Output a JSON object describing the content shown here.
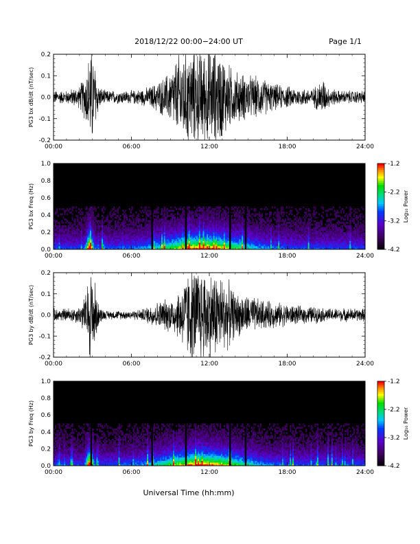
{
  "header": {
    "title": "2018/12/22  00:00−24:00 UT",
    "page": "Page 1/1"
  },
  "footer": {
    "xlabel": "Universal Time (hh:mm)"
  },
  "chart_data": [
    {
      "type": "line",
      "ylabel": "PG3 bx dB/dt (nT/sec)",
      "xlim": [
        0,
        24
      ],
      "ylim": [
        -0.2,
        0.2
      ],
      "x_ticks": [
        "00:00",
        "06:00",
        "12:00",
        "18:00",
        "24:00"
      ],
      "y_ticks": [
        "-0.2",
        "-0.1",
        "0.0",
        "0.1",
        "0.2"
      ],
      "y_tick_values": [
        -0.2,
        -0.1,
        0.0,
        0.1,
        0.2
      ],
      "series": [
        {
          "x": [
            0,
            1,
            2,
            2.5,
            2.8,
            3,
            3.5,
            4,
            5,
            6,
            7,
            7.5,
            8,
            8.5,
            9,
            9.5,
            10,
            10.5,
            11,
            11.5,
            12,
            12.5,
            13,
            13.5,
            14,
            15,
            16,
            17,
            18,
            19,
            20,
            20.8,
            21,
            22,
            23,
            24
          ],
          "envelope": [
            0.03,
            0.03,
            0.05,
            0.12,
            0.22,
            0.22,
            0.05,
            0.03,
            0.03,
            0.03,
            0.04,
            0.05,
            0.07,
            0.09,
            0.12,
            0.18,
            0.22,
            0.22,
            0.22,
            0.22,
            0.22,
            0.22,
            0.2,
            0.15,
            0.12,
            0.1,
            0.09,
            0.06,
            0.05,
            0.04,
            0.04,
            0.09,
            0.05,
            0.03,
            0.03,
            0.03
          ]
        }
      ]
    },
    {
      "type": "heatmap",
      "ylabel": "PG3 bx Freq (Hz)",
      "xlim": [
        0,
        24
      ],
      "ylim": [
        0,
        1.0
      ],
      "x_ticks": [
        "00:00",
        "06:00",
        "12:00",
        "18:00",
        "24:00"
      ],
      "y_ticks": [
        "0.0",
        "0.2",
        "0.4",
        "0.6",
        "0.8",
        "1.0"
      ],
      "y_tick_values": [
        0.0,
        0.2,
        0.4,
        0.6,
        0.8,
        1.0
      ],
      "colorbar": {
        "label": "Log₁₀ Power",
        "ticks": [
          "-1.2",
          "-2.2",
          "-3.2",
          "-4.2"
        ],
        "tick_values": [
          -1.2,
          -2.2,
          -3.2,
          -4.2
        ],
        "range": [
          -4.2,
          -1.2
        ]
      },
      "data_gaps_hours": [
        7.6,
        10.2,
        13.6,
        14.8
      ]
    },
    {
      "type": "line",
      "ylabel": "PG3 by dB/dt (nT/sec)",
      "xlim": [
        0,
        24
      ],
      "ylim": [
        -0.2,
        0.2
      ],
      "x_ticks": [
        "00:00",
        "06:00",
        "12:00",
        "18:00",
        "24:00"
      ],
      "y_ticks": [
        "-0.2",
        "-0.1",
        "0.0",
        "0.1",
        "0.2"
      ],
      "y_tick_values": [
        -0.2,
        -0.1,
        0.0,
        0.1,
        0.2
      ],
      "series": [
        {
          "x": [
            0,
            1,
            2,
            2.5,
            2.8,
            3,
            3.5,
            4,
            5,
            6,
            7,
            7.5,
            8,
            8.5,
            9,
            9.5,
            10,
            10.5,
            11,
            11.5,
            12,
            12.5,
            13,
            13.5,
            14,
            15,
            16,
            17,
            18,
            19,
            20,
            21,
            22,
            23,
            24
          ],
          "envelope": [
            0.03,
            0.03,
            0.04,
            0.1,
            0.22,
            0.22,
            0.04,
            0.02,
            0.02,
            0.02,
            0.03,
            0.05,
            0.06,
            0.07,
            0.08,
            0.1,
            0.16,
            0.22,
            0.22,
            0.22,
            0.2,
            0.2,
            0.18,
            0.15,
            0.1,
            0.09,
            0.07,
            0.06,
            0.05,
            0.04,
            0.04,
            0.03,
            0.03,
            0.03,
            0.03
          ]
        }
      ]
    },
    {
      "type": "heatmap",
      "ylabel": "PG3 by Freq (Hz)",
      "xlim": [
        0,
        24
      ],
      "ylim": [
        0,
        1.0
      ],
      "x_ticks": [
        "00:00",
        "06:00",
        "12:00",
        "18:00",
        "24:00"
      ],
      "y_ticks": [
        "0.0",
        "0.2",
        "0.4",
        "0.6",
        "0.8",
        "1.0"
      ],
      "y_tick_values": [
        0.0,
        0.2,
        0.4,
        0.6,
        0.8,
        1.0
      ],
      "colorbar": {
        "label": "Log₁₀ Power",
        "ticks": [
          "-1.2",
          "-2.2",
          "-3.2",
          "-4.2"
        ],
        "tick_values": [
          -1.2,
          -2.2,
          -3.2,
          -4.2
        ],
        "range": [
          -4.2,
          -1.2
        ]
      },
      "data_gaps_hours": [
        2.9,
        7.6,
        10.2,
        13.6,
        14.8
      ]
    }
  ]
}
